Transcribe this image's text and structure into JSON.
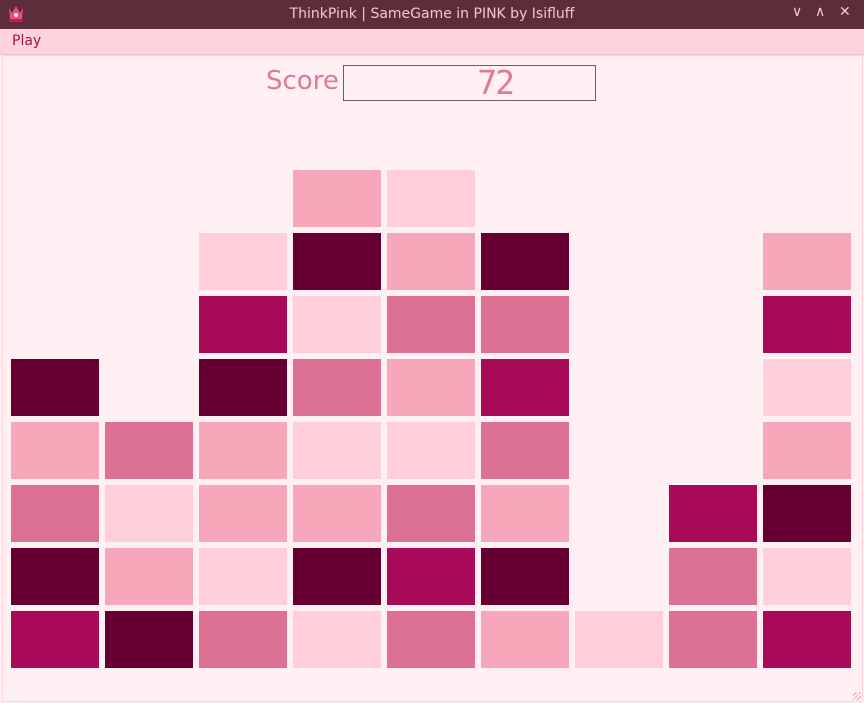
{
  "window": {
    "title": "ThinkPink | SameGame in PINK by Isifluff",
    "icon": "crown-icon",
    "controls": [
      "minimize-icon",
      "maximize-icon",
      "close-icon"
    ]
  },
  "menu": {
    "items": [
      {
        "label": "Play"
      }
    ]
  },
  "score": {
    "label": "Score",
    "value": "72"
  },
  "colors": {
    "light": "#ffd0d9",
    "medium": "#f6a7b9",
    "rose": "#dc7193",
    "magenta": "#a80a58",
    "dark": "#660033"
  },
  "board": {
    "columns": 9,
    "rows": 8,
    "grid": [
      [
        null,
        null,
        null,
        "medium",
        "light",
        null,
        null,
        null,
        null
      ],
      [
        null,
        null,
        "light",
        "dark",
        "medium",
        "dark",
        null,
        null,
        "medium"
      ],
      [
        null,
        null,
        "magenta",
        "light",
        "rose",
        "rose",
        null,
        null,
        "magenta"
      ],
      [
        "dark",
        null,
        "dark",
        "rose",
        "medium",
        "magenta",
        null,
        null,
        "light"
      ],
      [
        "medium",
        "rose",
        "medium",
        "light",
        "light",
        "rose",
        null,
        null,
        "medium"
      ],
      [
        "rose",
        "light",
        "medium",
        "medium",
        "rose",
        "medium",
        null,
        "magenta",
        "dark"
      ],
      [
        "dark",
        "medium",
        "light",
        "dark",
        "magenta",
        "dark",
        null,
        "rose",
        "light"
      ],
      [
        "magenta",
        "dark",
        "rose",
        "light",
        "rose",
        "medium",
        "light",
        "rose",
        "magenta"
      ]
    ]
  }
}
